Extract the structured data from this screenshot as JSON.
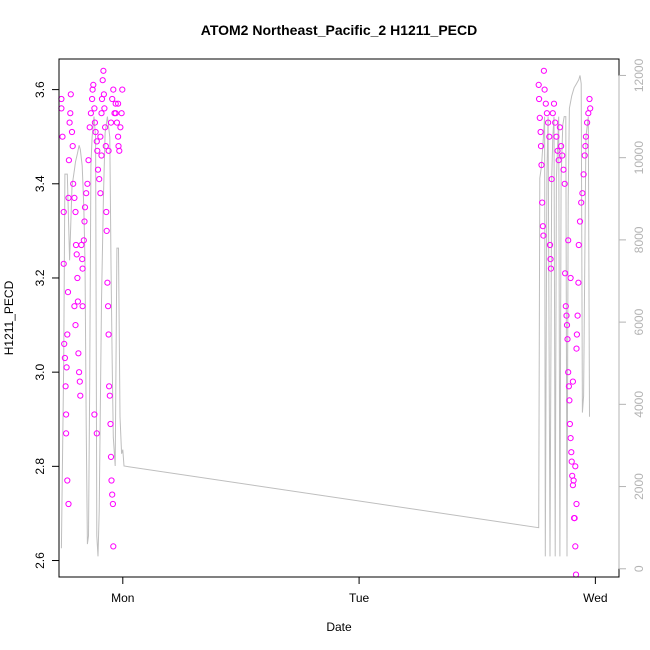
{
  "chart_data": {
    "type": "scatter",
    "title": "ATOM2 Northeast_Pacific_2 H1211_PECD",
    "xlabel": "Date",
    "ylabel": "H1211_PECD",
    "x_unit": "days",
    "xlim": [
      -0.27,
      2.1
    ],
    "ylim": [
      2.565,
      3.665
    ],
    "y2lim": [
      -200,
      12400
    ],
    "x_ticks": [
      {
        "value": 0,
        "label": "Mon"
      },
      {
        "value": 1,
        "label": "Tue"
      },
      {
        "value": 2,
        "label": "Wed"
      }
    ],
    "y_ticks": [
      2.6,
      2.8,
      3.0,
      3.2,
      3.4,
      3.6
    ],
    "y2_ticks": [
      0,
      2000,
      4000,
      6000,
      8000,
      10000,
      12000
    ],
    "grid": false,
    "colors": {
      "points": "#ff00ff",
      "line": "#bebebe",
      "right_axis": "#b3b3b3"
    },
    "series": [
      {
        "axis": "left",
        "style": "open-circles",
        "points": [
          [
            -0.26,
            3.58
          ],
          [
            -0.26,
            3.56
          ],
          [
            -0.255,
            3.5
          ],
          [
            -0.25,
            3.34
          ],
          [
            -0.25,
            3.23
          ],
          [
            -0.248,
            3.06
          ],
          [
            -0.245,
            3.03
          ],
          [
            -0.242,
            2.97
          ],
          [
            -0.24,
            2.91
          ],
          [
            -0.238,
            3.01
          ],
          [
            -0.235,
            3.08
          ],
          [
            -0.232,
            3.17
          ],
          [
            -0.23,
            3.37
          ],
          [
            -0.228,
            3.45
          ],
          [
            -0.225,
            3.53
          ],
          [
            -0.222,
            3.55
          ],
          [
            -0.22,
            3.59
          ],
          [
            -0.215,
            3.51
          ],
          [
            -0.212,
            3.48
          ],
          [
            -0.21,
            3.4
          ],
          [
            -0.205,
            3.37
          ],
          [
            -0.2,
            3.34
          ],
          [
            -0.198,
            3.27
          ],
          [
            -0.195,
            3.25
          ],
          [
            -0.192,
            3.2
          ],
          [
            -0.19,
            3.15
          ],
          [
            -0.188,
            3.04
          ],
          [
            -0.185,
            3.0
          ],
          [
            -0.182,
            2.98
          ],
          [
            -0.18,
            2.95
          ],
          [
            -0.175,
            3.27
          ],
          [
            -0.172,
            3.24
          ],
          [
            -0.17,
            3.22
          ],
          [
            -0.165,
            3.28
          ],
          [
            -0.162,
            3.32
          ],
          [
            -0.16,
            3.35
          ],
          [
            -0.155,
            3.38
          ],
          [
            -0.15,
            3.4
          ],
          [
            -0.145,
            3.45
          ],
          [
            -0.14,
            3.52
          ],
          [
            -0.135,
            3.55
          ],
          [
            -0.13,
            3.58
          ],
          [
            -0.128,
            3.6
          ],
          [
            -0.125,
            3.61
          ],
          [
            -0.12,
            3.56
          ],
          [
            -0.118,
            3.53
          ],
          [
            -0.115,
            3.51
          ],
          [
            -0.11,
            3.49
          ],
          [
            -0.108,
            3.47
          ],
          [
            -0.105,
            3.43
          ],
          [
            -0.1,
            3.41
          ],
          [
            -0.095,
            3.38
          ],
          [
            -0.09,
            3.55
          ],
          [
            -0.088,
            3.58
          ],
          [
            -0.085,
            3.62
          ],
          [
            -0.082,
            3.64
          ],
          [
            -0.08,
            3.59
          ],
          [
            -0.078,
            3.56
          ],
          [
            -0.075,
            3.52
          ],
          [
            -0.072,
            3.48
          ],
          [
            -0.07,
            3.34
          ],
          [
            -0.068,
            3.3
          ],
          [
            -0.065,
            3.19
          ],
          [
            -0.062,
            3.14
          ],
          [
            -0.06,
            3.08
          ],
          [
            -0.058,
            2.97
          ],
          [
            -0.055,
            2.95
          ],
          [
            -0.052,
            2.89
          ],
          [
            -0.05,
            2.82
          ],
          [
            -0.048,
            2.77
          ],
          [
            -0.045,
            2.74
          ],
          [
            -0.042,
            2.72
          ],
          [
            -0.04,
            2.63
          ],
          [
            -0.035,
            3.55
          ],
          [
            -0.03,
            3.57
          ],
          [
            -0.025,
            3.53
          ],
          [
            -0.02,
            3.5
          ],
          [
            -0.018,
            3.48
          ],
          [
            -0.015,
            3.47
          ],
          [
            -0.01,
            3.52
          ],
          [
            -0.005,
            3.55
          ],
          [
            -0.002,
            3.6
          ],
          [
            -0.24,
            2.87
          ],
          [
            -0.235,
            2.77
          ],
          [
            -0.23,
            2.72
          ],
          [
            -0.205,
            3.14
          ],
          [
            -0.2,
            3.1
          ],
          [
            -0.17,
            3.14
          ],
          [
            -0.12,
            2.91
          ],
          [
            -0.11,
            2.87
          ],
          [
            -0.095,
            3.5
          ],
          [
            -0.09,
            3.46
          ],
          [
            -0.06,
            3.47
          ],
          [
            -0.05,
            3.53
          ],
          [
            -0.045,
            3.58
          ],
          [
            -0.04,
            3.6
          ],
          [
            -0.03,
            3.55
          ],
          [
            -0.02,
            3.57
          ],
          [
            1.76,
            3.61
          ],
          [
            1.762,
            3.58
          ],
          [
            1.765,
            3.54
          ],
          [
            1.768,
            3.51
          ],
          [
            1.77,
            3.48
          ],
          [
            1.772,
            3.44
          ],
          [
            1.775,
            3.36
          ],
          [
            1.778,
            3.31
          ],
          [
            1.78,
            3.29
          ],
          [
            1.782,
            3.64
          ],
          [
            1.785,
            3.6
          ],
          [
            1.79,
            3.57
          ],
          [
            1.795,
            3.55
          ],
          [
            1.8,
            3.53
          ],
          [
            1.805,
            3.5
          ],
          [
            1.808,
            3.27
          ],
          [
            1.81,
            3.24
          ],
          [
            1.812,
            3.22
          ],
          [
            1.815,
            3.41
          ],
          [
            1.82,
            3.55
          ],
          [
            1.825,
            3.57
          ],
          [
            1.83,
            3.53
          ],
          [
            1.835,
            3.5
          ],
          [
            1.84,
            3.47
          ],
          [
            1.845,
            3.45
          ],
          [
            1.85,
            3.52
          ],
          [
            1.855,
            3.48
          ],
          [
            1.86,
            3.46
          ],
          [
            1.865,
            3.43
          ],
          [
            1.87,
            3.4
          ],
          [
            1.872,
            3.21
          ],
          [
            1.875,
            3.14
          ],
          [
            1.878,
            3.12
          ],
          [
            1.88,
            3.1
          ],
          [
            1.882,
            3.07
          ],
          [
            1.885,
            3.0
          ],
          [
            1.888,
            2.97
          ],
          [
            1.89,
            2.94
          ],
          [
            1.892,
            2.89
          ],
          [
            1.895,
            2.86
          ],
          [
            1.898,
            2.83
          ],
          [
            1.9,
            2.81
          ],
          [
            1.902,
            2.78
          ],
          [
            1.905,
            2.76
          ],
          [
            1.908,
            2.77
          ],
          [
            1.91,
            2.69
          ],
          [
            1.912,
            2.69
          ],
          [
            1.915,
            2.63
          ],
          [
            1.918,
            2.57
          ],
          [
            1.92,
            3.05
          ],
          [
            1.922,
            3.08
          ],
          [
            1.925,
            3.12
          ],
          [
            1.928,
            3.19
          ],
          [
            1.93,
            3.27
          ],
          [
            1.935,
            3.32
          ],
          [
            1.94,
            3.36
          ],
          [
            1.945,
            3.38
          ],
          [
            1.95,
            3.42
          ],
          [
            1.955,
            3.46
          ],
          [
            1.958,
            3.48
          ],
          [
            1.96,
            3.5
          ],
          [
            1.965,
            3.53
          ],
          [
            1.97,
            3.55
          ],
          [
            1.975,
            3.58
          ],
          [
            1.978,
            3.56
          ],
          [
            1.92,
            2.72
          ],
          [
            1.915,
            2.8
          ],
          [
            1.905,
            2.98
          ],
          [
            1.895,
            3.2
          ],
          [
            1.885,
            3.28
          ]
        ]
      },
      {
        "axis": "right",
        "style": "line",
        "points": [
          [
            -0.26,
            500
          ],
          [
            -0.25,
            5000
          ],
          [
            -0.245,
            9600
          ],
          [
            -0.235,
            9600
          ],
          [
            -0.225,
            7500
          ],
          [
            -0.215,
            9300
          ],
          [
            -0.205,
            9700
          ],
          [
            -0.2,
            9900
          ],
          [
            -0.192,
            10100
          ],
          [
            -0.185,
            10300
          ],
          [
            -0.18,
            10200
          ],
          [
            -0.172,
            9800
          ],
          [
            -0.165,
            8800
          ],
          [
            -0.16,
            7500
          ],
          [
            -0.155,
            3500
          ],
          [
            -0.15,
            600
          ],
          [
            -0.145,
            800
          ],
          [
            -0.14,
            4500
          ],
          [
            -0.135,
            9800
          ],
          [
            -0.13,
            10500
          ],
          [
            -0.122,
            11000
          ],
          [
            -0.115,
            10500
          ],
          [
            -0.11,
            800
          ],
          [
            -0.105,
            300
          ],
          [
            -0.1,
            1400
          ],
          [
            -0.09,
            6500
          ],
          [
            -0.082,
            9000
          ],
          [
            -0.075,
            10600
          ],
          [
            -0.065,
            11000
          ],
          [
            -0.055,
            10500
          ],
          [
            -0.05,
            7400
          ],
          [
            -0.045,
            5000
          ],
          [
            -0.04,
            3200
          ],
          [
            -0.032,
            2500
          ],
          [
            -0.025,
            7800
          ],
          [
            -0.018,
            7800
          ],
          [
            -0.012,
            3700
          ],
          [
            -0.005,
            2800
          ],
          [
            0.0,
            2900
          ],
          [
            0.005,
            2500
          ],
          [
            1.76,
            1000
          ],
          [
            1.765,
            9500
          ],
          [
            1.772,
            9800
          ],
          [
            1.78,
            10500
          ],
          [
            1.785,
            11000
          ],
          [
            1.788,
            300
          ],
          [
            1.795,
            9600
          ],
          [
            1.8,
            11000
          ],
          [
            1.808,
            300
          ],
          [
            1.815,
            9500
          ],
          [
            1.82,
            10500
          ],
          [
            1.825,
            11000
          ],
          [
            1.83,
            300
          ],
          [
            1.835,
            9500
          ],
          [
            1.845,
            11000
          ],
          [
            1.85,
            300
          ],
          [
            1.855,
            9500
          ],
          [
            1.862,
            10800
          ],
          [
            1.868,
            11000
          ],
          [
            1.875,
            11000
          ],
          [
            1.88,
            300
          ],
          [
            1.885,
            9000
          ],
          [
            1.89,
            11200
          ],
          [
            1.9,
            11500
          ],
          [
            1.91,
            11700
          ],
          [
            1.92,
            11800
          ],
          [
            1.93,
            11900
          ],
          [
            1.935,
            12000
          ],
          [
            1.94,
            11800
          ],
          [
            1.945,
            3800
          ],
          [
            1.95,
            4200
          ],
          [
            1.96,
            10500
          ],
          [
            1.97,
            11000
          ],
          [
            1.975,
            3700
          ]
        ]
      }
    ]
  }
}
